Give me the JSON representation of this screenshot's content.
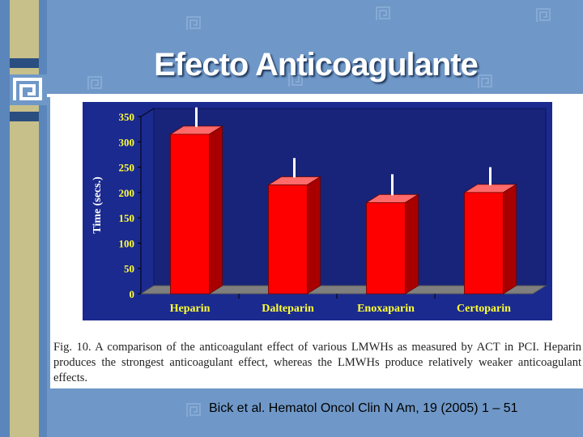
{
  "slide": {
    "title": "Efecto Anticoagulante",
    "citation": "Bick et al. Hematol Oncol Clin N Am, 19 (2005) 1 – 51"
  },
  "colors": {
    "background": "#6f98c8",
    "plot_background": "#1b2a8f",
    "bar": "#ff0000",
    "axis_text": "#ffff33"
  },
  "caption": "Fig. 10. A comparison of the anticoagulant effect of various LMWHs as measured by ACT in PCI. Heparin produces the strongest anticoagulant effect, whereas the LMWHs produce relatively weaker anticoagulant effects.",
  "chart_data": {
    "type": "bar",
    "title": "",
    "xlabel": "",
    "ylabel": "Time (secs.)",
    "categories": [
      "Heparin",
      "Dalteparin",
      "Enoxaparin",
      "Certoparin"
    ],
    "values": [
      315,
      215,
      180,
      200
    ],
    "error_upper": [
      360,
      260,
      228,
      242
    ],
    "ylim": [
      0,
      350
    ],
    "yticks": [
      "0",
      "50",
      "100",
      "150",
      "200",
      "250",
      "300",
      "350"
    ],
    "grid": false,
    "style": "3d"
  }
}
